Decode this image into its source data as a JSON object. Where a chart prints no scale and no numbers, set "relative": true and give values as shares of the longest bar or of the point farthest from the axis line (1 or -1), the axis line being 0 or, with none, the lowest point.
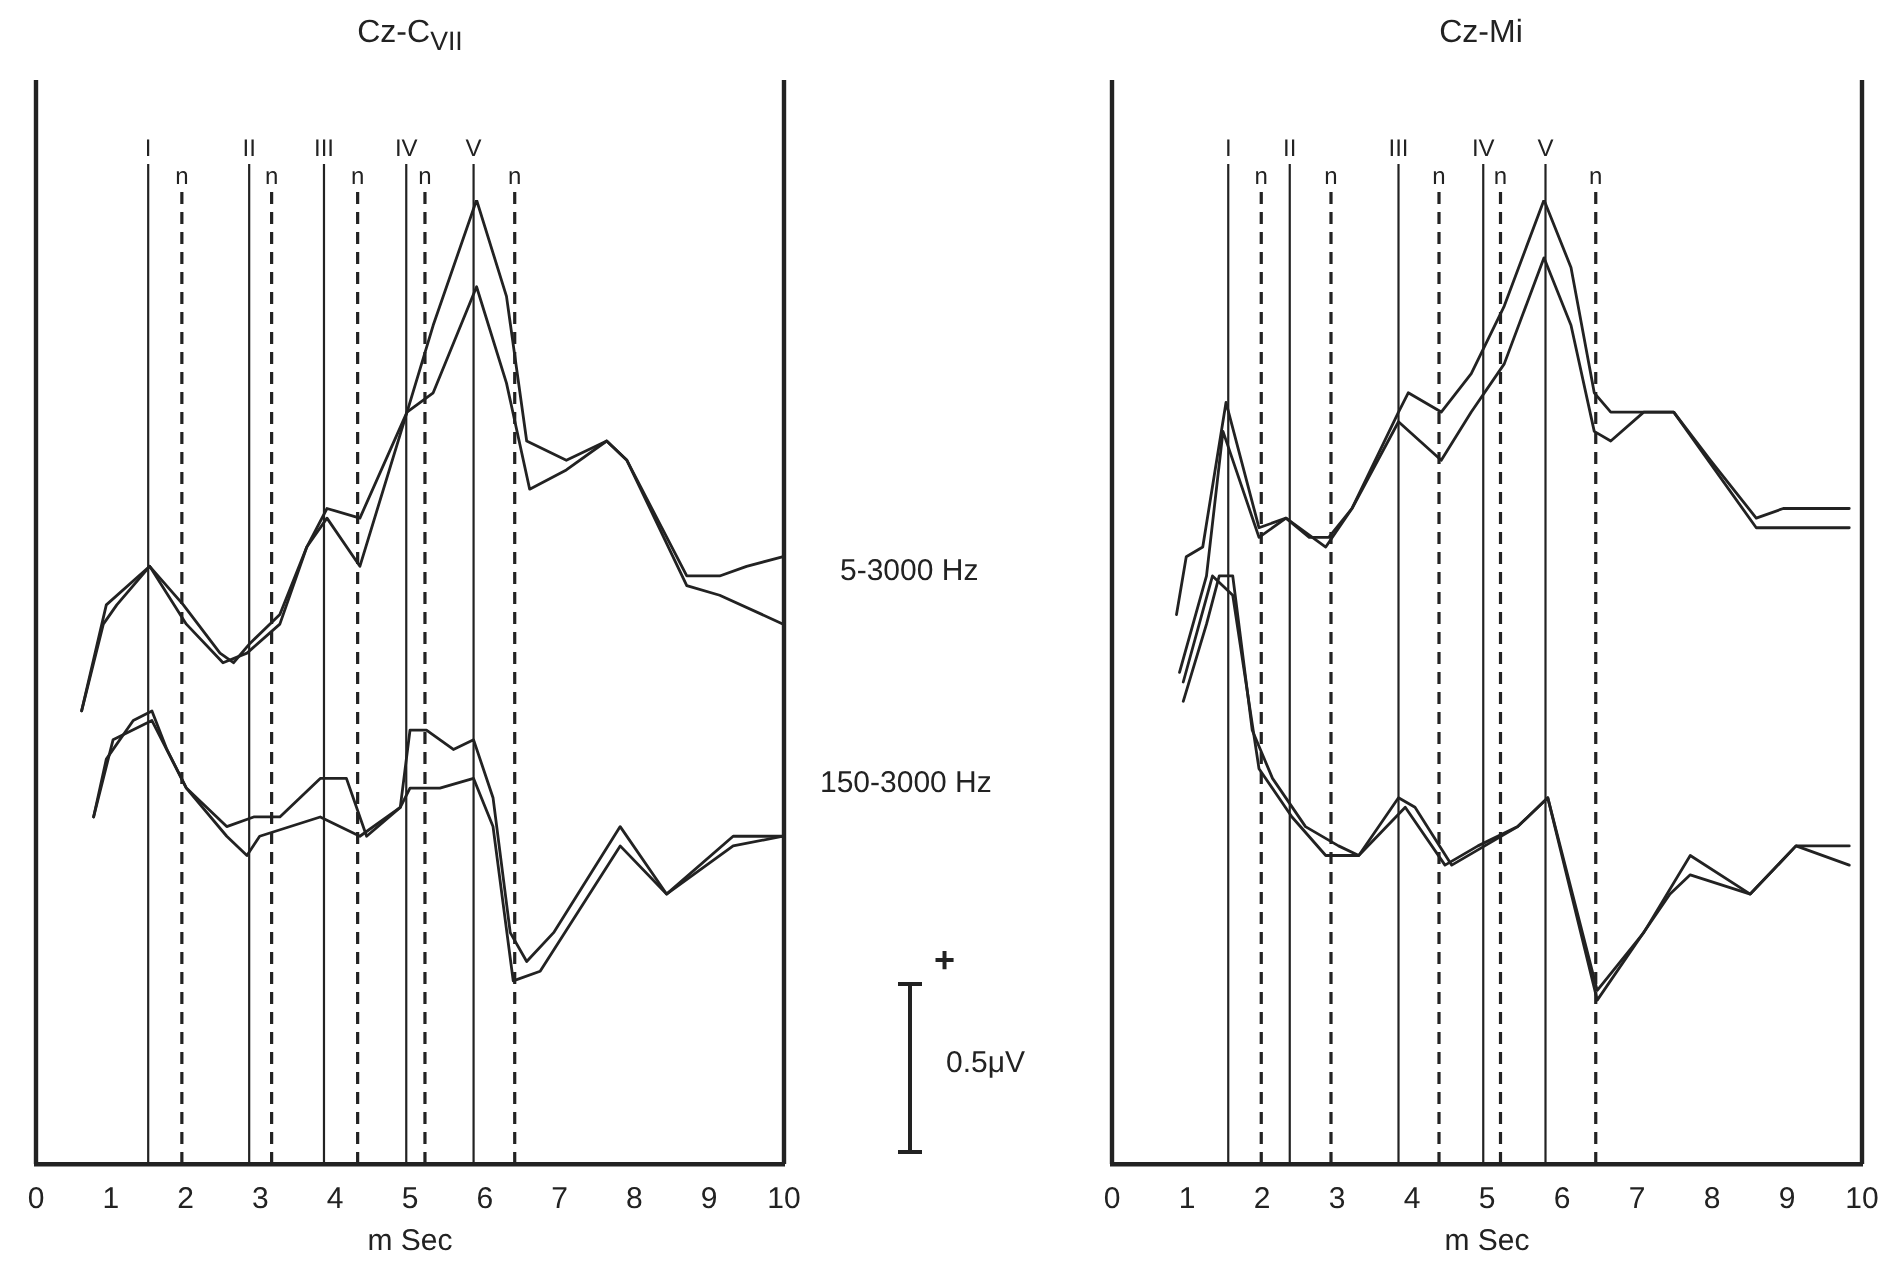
{
  "chart_data": [
    {
      "type": "line",
      "title": "Cz-C$_{VII}$",
      "xlabel": "m Sec",
      "relative": true,
      "xlim": [
        0,
        10
      ],
      "xticks": [
        0,
        1,
        2,
        3,
        4,
        5,
        6,
        7,
        8,
        9,
        10
      ],
      "grid": false,
      "legend": false,
      "annotations": [
        "5-3000 Hz",
        "150-3000 Hz",
        "+",
        "0.5μV"
      ],
      "ref_lines": [
        {
          "axis": "x",
          "value": 1.5,
          "label": "I",
          "line_style": "solid"
        },
        {
          "axis": "x",
          "value": 1.95,
          "label": "n",
          "line_style": "dashed"
        },
        {
          "axis": "x",
          "value": 2.85,
          "label": "II",
          "line_style": "solid"
        },
        {
          "axis": "x",
          "value": 3.15,
          "label": "n",
          "line_style": "dashed"
        },
        {
          "axis": "x",
          "value": 3.85,
          "label": "III",
          "line_style": "solid"
        },
        {
          "axis": "x",
          "value": 4.3,
          "label": "n",
          "line_style": "dashed"
        },
        {
          "axis": "x",
          "value": 4.95,
          "label": "IV",
          "line_style": "solid"
        },
        {
          "axis": "x",
          "value": 5.2,
          "label": "n",
          "line_style": "dashed"
        },
        {
          "axis": "x",
          "value": 5.85,
          "label": "V",
          "line_style": "solid"
        },
        {
          "axis": "x",
          "value": 6.4,
          "label": "n",
          "line_style": "dashed"
        }
      ],
      "series": [
        {
          "color": "#222222",
          "x": [
            0.61,
            0.9,
            1.08,
            1.52,
            1.97,
            2.46,
            2.64,
            2.86,
            3.26,
            3.62,
            3.89,
            4.33,
            4.96,
            5.31,
            5.89,
            6.29,
            6.56,
            7.09,
            7.63,
            7.9,
            8.7,
            9.14,
            9.5,
            9.99
          ],
          "values": [
            0.47,
            0.56,
            0.58,
            0.62,
            0.58,
            0.53,
            0.52,
            0.54,
            0.57,
            0.64,
            0.68,
            0.67,
            0.78,
            0.87,
            1.0,
            0.9,
            0.75,
            0.73,
            0.75,
            0.73,
            0.61,
            0.61,
            0.62,
            0.63
          ]
        },
        {
          "color": "#222222",
          "x": [
            0.61,
            0.94,
            1.52,
            2.01,
            2.5,
            2.82,
            3.26,
            3.62,
            3.89,
            4.33,
            4.96,
            5.31,
            5.89,
            6.29,
            6.6,
            7.09,
            7.63,
            7.9,
            8.7,
            9.14,
            9.99
          ],
          "values": [
            0.47,
            0.58,
            0.62,
            0.56,
            0.52,
            0.53,
            0.56,
            0.64,
            0.67,
            0.62,
            0.78,
            0.8,
            0.91,
            0.81,
            0.7,
            0.72,
            0.75,
            0.73,
            0.6,
            0.59,
            0.56
          ]
        },
        {
          "color": "#222222",
          "x": [
            0.77,
            0.94,
            1.3,
            1.55,
            1.75,
            2.01,
            2.55,
            2.91,
            3.26,
            3.8,
            4.15,
            4.42,
            4.87,
            5.0,
            5.22,
            5.58,
            5.85,
            6.11,
            6.34,
            6.56,
            6.92,
            7.81,
            8.43,
            9.32,
            9.99
          ],
          "values": [
            0.36,
            0.42,
            0.46,
            0.47,
            0.43,
            0.39,
            0.35,
            0.36,
            0.36,
            0.4,
            0.4,
            0.34,
            0.37,
            0.45,
            0.45,
            0.43,
            0.44,
            0.38,
            0.24,
            0.21,
            0.24,
            0.35,
            0.28,
            0.34,
            0.34
          ]
        },
        {
          "color": "#222222",
          "x": [
            0.77,
            1.03,
            1.55,
            2.01,
            2.55,
            2.82,
            2.99,
            3.8,
            4.33,
            4.87,
            5.0,
            5.4,
            5.85,
            6.11,
            6.38,
            6.74,
            7.81,
            8.43,
            9.32,
            9.99
          ],
          "values": [
            0.36,
            0.44,
            0.46,
            0.39,
            0.34,
            0.32,
            0.34,
            0.36,
            0.34,
            0.37,
            0.39,
            0.39,
            0.4,
            0.35,
            0.19,
            0.2,
            0.33,
            0.28,
            0.33,
            0.34
          ]
        }
      ]
    },
    {
      "type": "line",
      "title": "Cz-Mi",
      "xlabel": "m Sec",
      "relative": true,
      "xlim": [
        0,
        10
      ],
      "xticks": [
        0,
        1,
        2,
        3,
        4,
        5,
        6,
        7,
        8,
        9,
        10
      ],
      "grid": false,
      "legend": false,
      "ref_lines": [
        {
          "axis": "x",
          "value": 1.55,
          "label": "I",
          "line_style": "solid"
        },
        {
          "axis": "x",
          "value": 1.99,
          "label": "n",
          "line_style": "dashed"
        },
        {
          "axis": "x",
          "value": 2.37,
          "label": "II",
          "line_style": "solid"
        },
        {
          "axis": "x",
          "value": 2.92,
          "label": "n",
          "line_style": "dashed"
        },
        {
          "axis": "x",
          "value": 3.82,
          "label": "III",
          "line_style": "solid"
        },
        {
          "axis": "x",
          "value": 4.36,
          "label": "n",
          "line_style": "dashed"
        },
        {
          "axis": "x",
          "value": 4.95,
          "label": "IV",
          "line_style": "solid"
        },
        {
          "axis": "x",
          "value": 5.18,
          "label": "n",
          "line_style": "dashed"
        },
        {
          "axis": "x",
          "value": 5.78,
          "label": "V",
          "line_style": "solid"
        },
        {
          "axis": "x",
          "value": 6.45,
          "label": "n",
          "line_style": "dashed"
        }
      ],
      "series": [
        {
          "color": "#222222",
          "x": [
            0.86,
            0.99,
            1.21,
            1.52,
            1.96,
            2.32,
            2.63,
            2.89,
            3.2,
            3.82,
            3.95,
            4.39,
            4.79,
            5.23,
            5.76,
            6.12,
            6.43,
            6.65,
            7.09,
            7.49,
            7.98,
            8.59,
            8.95,
            9.83
          ],
          "values": [
            0.57,
            0.63,
            0.64,
            0.79,
            0.66,
            0.67,
            0.65,
            0.65,
            0.68,
            0.78,
            0.8,
            0.78,
            0.82,
            0.89,
            1.0,
            0.93,
            0.8,
            0.78,
            0.78,
            0.78,
            0.73,
            0.67,
            0.68,
            0.68
          ]
        },
        {
          "color": "#222222",
          "x": [
            0.9,
            1.26,
            1.48,
            1.96,
            2.32,
            2.85,
            3.2,
            3.82,
            4.39,
            4.79,
            5.23,
            5.76,
            6.12,
            6.43,
            6.65,
            7.09,
            7.49,
            8.59,
            8.95,
            9.83
          ],
          "values": [
            0.51,
            0.61,
            0.76,
            0.65,
            0.67,
            0.64,
            0.68,
            0.77,
            0.73,
            0.78,
            0.83,
            0.94,
            0.87,
            0.76,
            0.75,
            0.78,
            0.78,
            0.66,
            0.66,
            0.66
          ]
        },
        {
          "color": "#222222",
          "x": [
            0.95,
            1.26,
            1.43,
            1.61,
            1.87,
            2.14,
            2.58,
            3.02,
            3.29,
            3.82,
            4.04,
            4.53,
            4.97,
            5.41,
            5.81,
            6.47,
            7.09,
            7.71,
            8.51,
            9.12,
            9.83
          ],
          "values": [
            0.48,
            0.56,
            0.61,
            0.61,
            0.45,
            0.4,
            0.35,
            0.33,
            0.32,
            0.38,
            0.37,
            0.31,
            0.33,
            0.35,
            0.38,
            0.18,
            0.24,
            0.32,
            0.28,
            0.33,
            0.33
          ]
        },
        {
          "color": "#222222",
          "x": [
            0.95,
            1.34,
            1.61,
            1.96,
            2.4,
            2.85,
            3.29,
            3.91,
            4.44,
            4.88,
            5.41,
            5.81,
            6.47,
            7.44,
            7.71,
            8.51,
            9.12,
            9.83
          ],
          "values": [
            0.5,
            0.61,
            0.59,
            0.41,
            0.36,
            0.32,
            0.32,
            0.37,
            0.31,
            0.33,
            0.35,
            0.38,
            0.17,
            0.28,
            0.3,
            0.28,
            0.33,
            0.31
          ]
        }
      ]
    }
  ]
}
